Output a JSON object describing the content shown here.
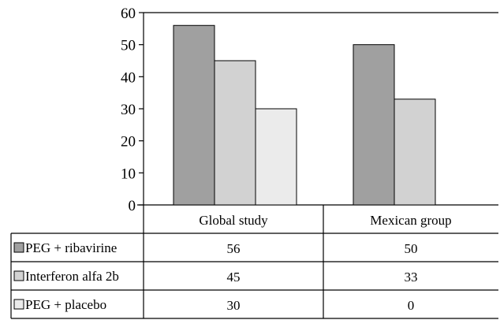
{
  "chart_data": {
    "type": "bar",
    "categories": [
      "Global study",
      "Mexican group"
    ],
    "series": [
      {
        "name": "PEG + ribavirine",
        "values": [
          56,
          50
        ],
        "color": "#a0a0a0"
      },
      {
        "name": "Interferon alfa 2b",
        "values": [
          45,
          33
        ],
        "color": "#d2d2d2"
      },
      {
        "name": "PEG + placebo",
        "values": [
          30,
          0
        ],
        "color": "#ebebeb"
      }
    ],
    "ylim": [
      0,
      60
    ],
    "yticks": [
      0,
      10,
      20,
      30,
      40,
      50,
      60
    ],
    "grid": false,
    "legend": "data-table-below"
  }
}
